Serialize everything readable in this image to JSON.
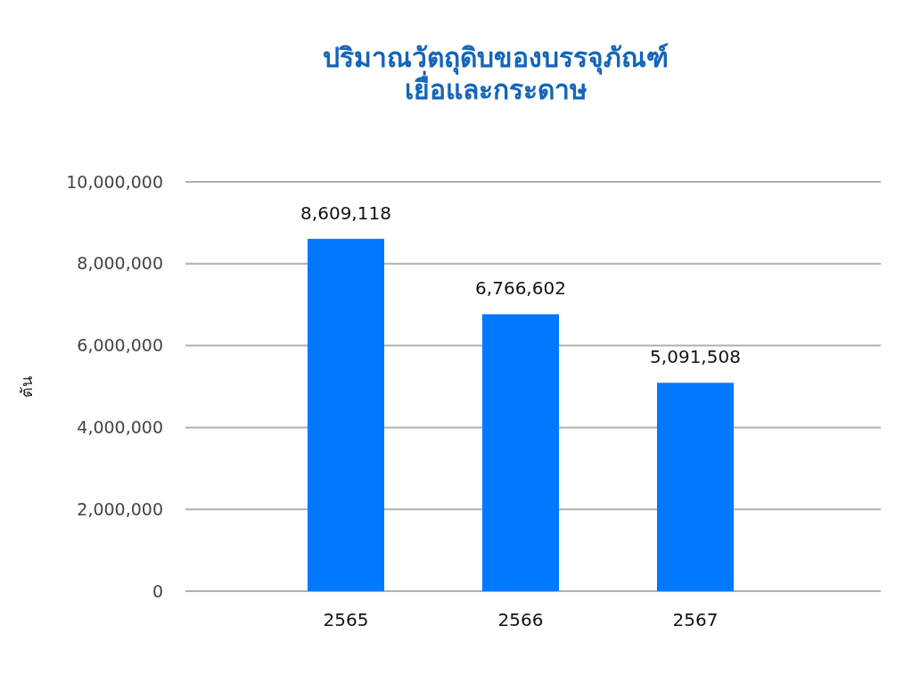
{
  "chart_data": {
    "type": "bar",
    "title": "ปริมาณวัตถุดิบของบรรจุภัณฑ์\nเยื่อและกระดาษ",
    "ylabel": "ตัน",
    "categories": [
      "2565",
      "2566",
      "2567"
    ],
    "values": [
      8609118,
      6766602,
      5091508
    ],
    "color": "#0079fe",
    "ylim": [
      0,
      10000000
    ],
    "yticks": [
      {
        "value": 0,
        "label": "0"
      },
      {
        "value": 2000000,
        "label": "2,000,000"
      },
      {
        "value": 4000000,
        "label": "4,000,000"
      },
      {
        "value": 6000000,
        "label": "6,000,000"
      },
      {
        "value": 8000000,
        "label": "8,000,000"
      },
      {
        "value": 10000000,
        "label": "10,000,000"
      }
    ],
    "value_labels": [
      "8,609,118",
      "6,766,602",
      "5,091,508"
    ],
    "grid": "y"
  }
}
